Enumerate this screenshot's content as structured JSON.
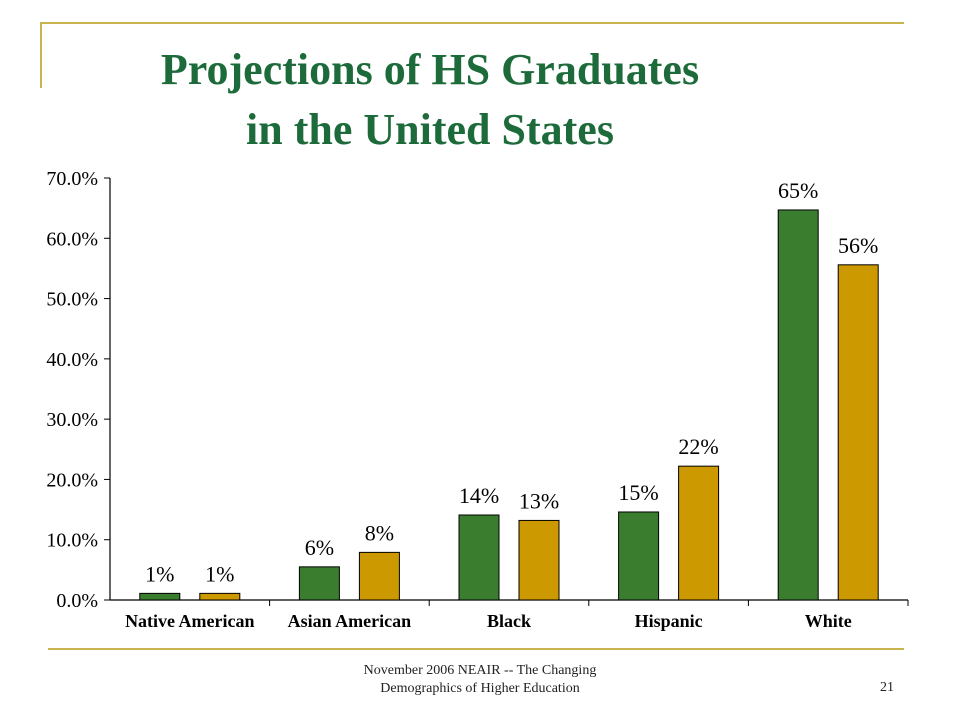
{
  "slide": {
    "title_line1": "Projections of HS Graduates",
    "title_line2": "in the United States",
    "footer_line1": "November 2006 NEAIR -- The Changing",
    "footer_line2": "Demographics of  Higher Education",
    "page_number": "21"
  },
  "colors": {
    "title": "#1d6b3a",
    "series1": "#3a7d2f",
    "series2": "#cc9900",
    "accent_line": "#c8b550"
  },
  "chart_data": {
    "type": "bar",
    "categories": [
      "Native American",
      "Asian American",
      "Black",
      "Hispanic",
      "White"
    ],
    "series": [
      {
        "values": [
          1.1,
          5.5,
          14.1,
          14.6,
          64.7
        ],
        "labels": [
          "1%",
          "6%",
          "14%",
          "15%",
          "65%"
        ],
        "color": "#3a7d2f"
      },
      {
        "values": [
          1.1,
          7.9,
          13.2,
          22.2,
          55.6
        ],
        "labels": [
          "1%",
          "8%",
          "13%",
          "22%",
          "56%"
        ],
        "color": "#cc9900"
      }
    ],
    "yticks": [
      "0.0%",
      "10.0%",
      "20.0%",
      "30.0%",
      "40.0%",
      "50.0%",
      "60.0%",
      "70.0%"
    ],
    "ylim": [
      0,
      70
    ],
    "legend": "none",
    "grid": false
  }
}
